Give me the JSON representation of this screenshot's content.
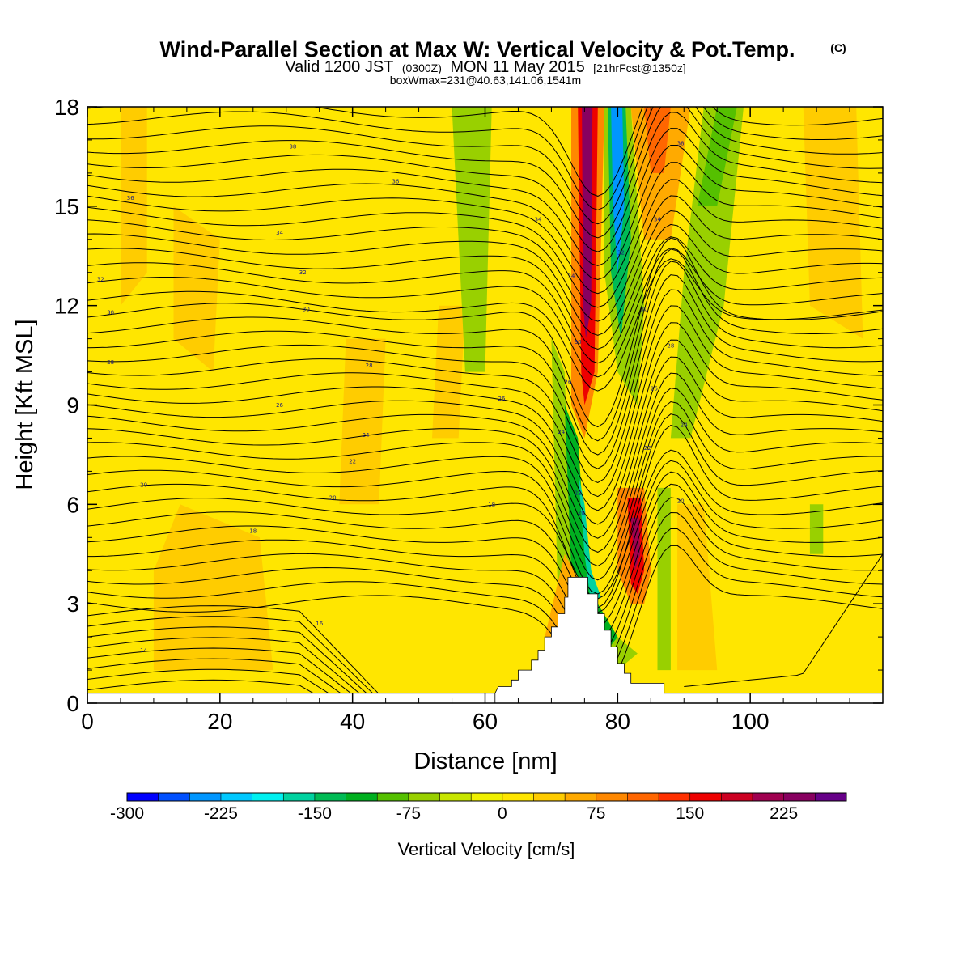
{
  "title": {
    "main": "Wind-Parallel Section at Max W: Vertical Velocity & Pot.Temp.",
    "copyright": "(C)",
    "valid_prefix": "Valid 1200 JST",
    "valid_utc": "(0300Z)",
    "valid_date": "MON 11 May 2015",
    "forecast": "[21hrFcst@1350z]",
    "boxinfo": "boxWmax=231@40.63,141.06,1541m"
  },
  "colors": {
    "background_field": "#f2f200",
    "axis": "#000000",
    "contour": "#000000",
    "terrain": "#ffffff"
  },
  "chart_data": {
    "type": "heatmap",
    "title": "Wind-Parallel Section at Max W: Vertical Velocity & Pot.Temp.",
    "xlabel": "Distance [nm]",
    "ylabel": "Height [Kft MSL]",
    "xlim": [
      0,
      120
    ],
    "ylim": [
      0,
      18
    ],
    "x_ticks": [
      0,
      20,
      40,
      60,
      80,
      100
    ],
    "y_ticks": [
      0,
      3,
      6,
      9,
      12,
      15,
      18
    ],
    "field": "Vertical Velocity",
    "colorbar": {
      "title": "Vertical Velocity [cm/s]",
      "levels": [
        -300,
        -275,
        -250,
        -225,
        -200,
        -175,
        -150,
        -125,
        -100,
        -75,
        -50,
        -25,
        0,
        25,
        50,
        75,
        100,
        125,
        150,
        175,
        200,
        225,
        250
      ],
      "tick_labels": [
        "-300",
        "-225",
        "-150",
        "-75",
        "0",
        "75",
        "150",
        "225"
      ],
      "tick_values": [
        -300,
        -225,
        -150,
        -75,
        0,
        75,
        150,
        225
      ],
      "colors": [
        "#0000ff",
        "#0050ff",
        "#0096ff",
        "#00c8ff",
        "#00f0f0",
        "#00d2a0",
        "#00bb55",
        "#00b020",
        "#55c000",
        "#99d000",
        "#c8e600",
        "#f0f000",
        "#ffe600",
        "#ffcc00",
        "#ffaa00",
        "#ff8800",
        "#ff6600",
        "#ff3000",
        "#ee0000",
        "#cc0022",
        "#a00050",
        "#880060",
        "#660088"
      ]
    },
    "contours": {
      "field": "Pot.Temp.",
      "labels": [
        {
          "text": "38",
          "x": 31.0,
          "y": 16.8
        },
        {
          "text": "36",
          "x": 6.5,
          "y": 15.25
        },
        {
          "text": "36",
          "x": 46.5,
          "y": 15.75
        },
        {
          "text": "34",
          "x": 29.0,
          "y": 14.2
        },
        {
          "text": "34",
          "x": 68.0,
          "y": 14.6
        },
        {
          "text": "34",
          "x": 86.0,
          "y": 14.6
        },
        {
          "text": "32",
          "x": 2.0,
          "y": 12.8
        },
        {
          "text": "32",
          "x": 32.5,
          "y": 13.0
        },
        {
          "text": "32",
          "x": 80.5,
          "y": 13.6
        },
        {
          "text": "34",
          "x": 73.0,
          "y": 12.9
        },
        {
          "text": "38",
          "x": 89.5,
          "y": 16.9
        },
        {
          "text": "30",
          "x": 3.5,
          "y": 11.8
        },
        {
          "text": "30",
          "x": 33.0,
          "y": 11.9
        },
        {
          "text": "30",
          "x": 74.0,
          "y": 10.9
        },
        {
          "text": "30",
          "x": 84.0,
          "y": 11.9
        },
        {
          "text": "28",
          "x": 3.5,
          "y": 10.3
        },
        {
          "text": "28",
          "x": 42.5,
          "y": 10.2
        },
        {
          "text": "28",
          "x": 88.0,
          "y": 10.8
        },
        {
          "text": "26",
          "x": 29.0,
          "y": 9.0
        },
        {
          "text": "26",
          "x": 62.5,
          "y": 9.2
        },
        {
          "text": "26",
          "x": 72.5,
          "y": 9.7
        },
        {
          "text": "26",
          "x": 85.5,
          "y": 9.5
        },
        {
          "text": "24",
          "x": 42.0,
          "y": 8.1
        },
        {
          "text": "24",
          "x": 71.5,
          "y": 8.2
        },
        {
          "text": "24",
          "x": 90.0,
          "y": 8.4
        },
        {
          "text": "22",
          "x": 40.0,
          "y": 7.3
        },
        {
          "text": "22",
          "x": 84.5,
          "y": 7.7
        },
        {
          "text": "22",
          "x": 74.0,
          "y": 6.35
        },
        {
          "text": "20",
          "x": 8.5,
          "y": 6.6
        },
        {
          "text": "20",
          "x": 37.0,
          "y": 6.2
        },
        {
          "text": "20",
          "x": 89.5,
          "y": 6.1
        },
        {
          "text": "20",
          "x": 74.5,
          "y": 5.75
        },
        {
          "text": "18",
          "x": 61.0,
          "y": 6.0
        },
        {
          "text": "18",
          "x": 25.0,
          "y": 5.2
        },
        {
          "text": "16",
          "x": 35.0,
          "y": 2.4
        },
        {
          "text": "14",
          "x": 8.5,
          "y": 1.6
        }
      ]
    }
  }
}
